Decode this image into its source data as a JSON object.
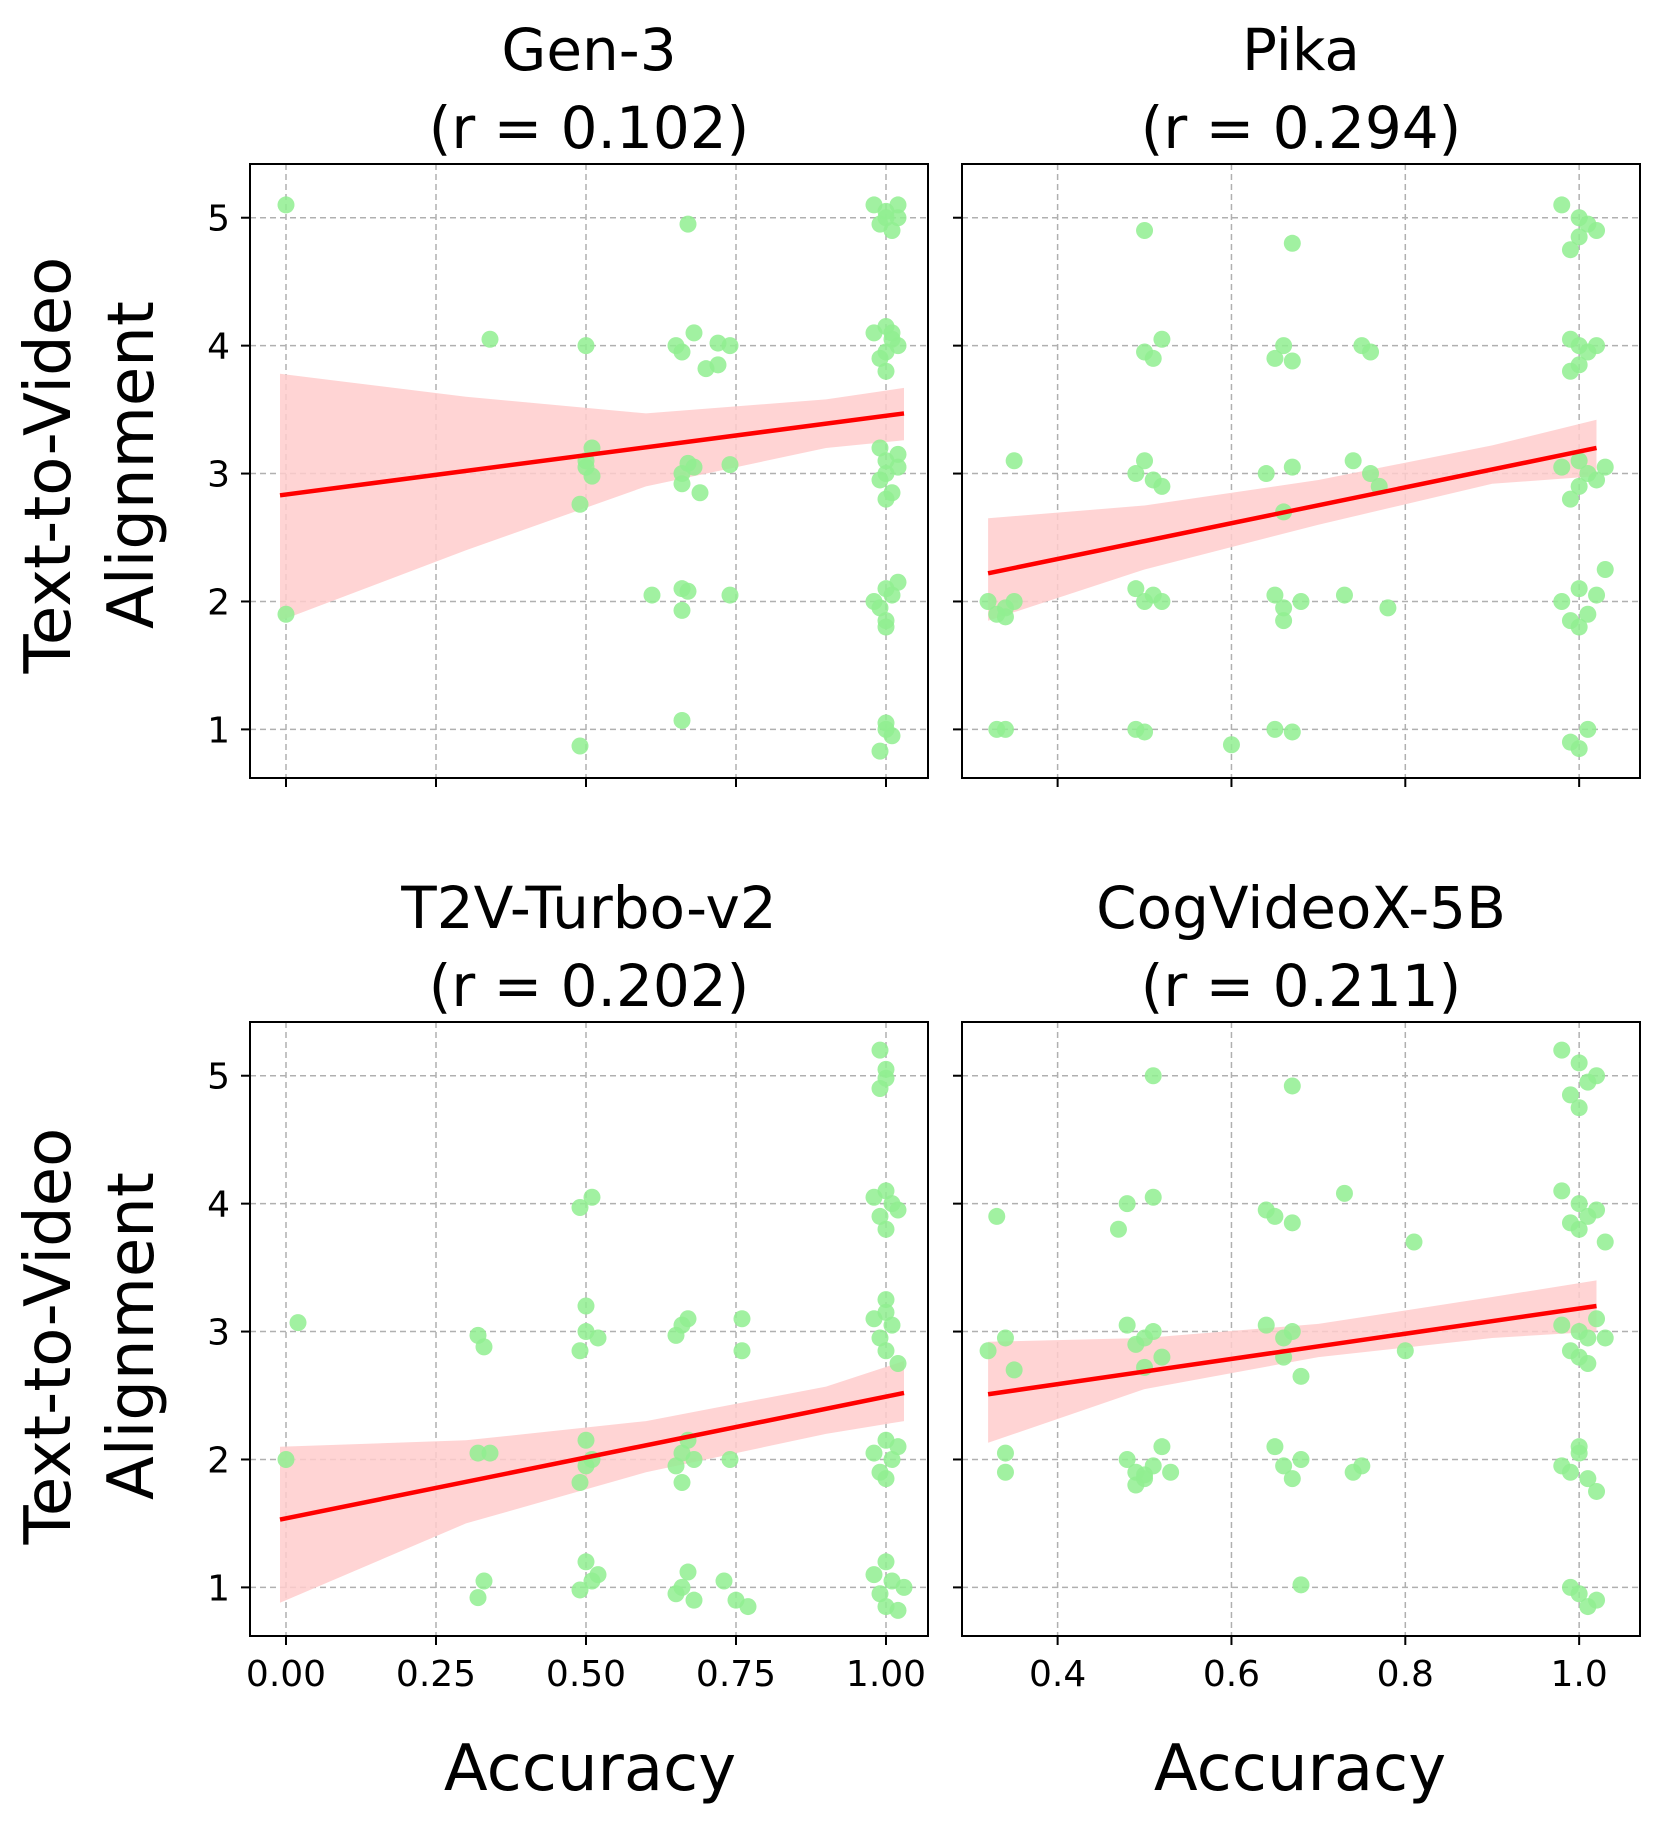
{
  "figure": {
    "ylabel_line1": "Text-to-Video",
    "ylabel_line2": "Alignment",
    "xlabel": "Accuracy"
  },
  "colors": {
    "point": "#90ee90",
    "line": "#ff0000",
    "band": "#ffcccc",
    "grid": "#b0b0b0"
  },
  "chart_data": [
    {
      "type": "scatter",
      "title": "Gen-3",
      "subtitle": "(r = 0.102)",
      "xlabel": "",
      "ylabel": "Text-to-Video Alignment",
      "xlim": [
        -0.06,
        1.07
      ],
      "ylim": [
        0.62,
        5.42
      ],
      "xticks": [
        0,
        0.25,
        0.5,
        0.75,
        1.0
      ],
      "xtick_labels": [],
      "yticks": [
        1,
        2,
        3,
        4,
        5
      ],
      "ytick_labels": [
        "1",
        "2",
        "3",
        "4",
        "5"
      ],
      "grid": true,
      "points": [
        [
          0.0,
          5.1
        ],
        [
          0.0,
          1.9
        ],
        [
          0.34,
          4.05
        ],
        [
          0.49,
          0.87
        ],
        [
          0.5,
          3.1
        ],
        [
          0.51,
          3.2
        ],
        [
          0.51,
          2.98
        ],
        [
          0.5,
          3.05
        ],
        [
          0.49,
          2.76
        ],
        [
          0.5,
          4.0
        ],
        [
          0.65,
          4.0
        ],
        [
          0.66,
          3.95
        ],
        [
          0.68,
          4.1
        ],
        [
          0.7,
          3.82
        ],
        [
          0.72,
          4.02
        ],
        [
          0.74,
          4.0
        ],
        [
          0.72,
          3.85
        ],
        [
          0.67,
          4.95
        ],
        [
          0.66,
          3.0
        ],
        [
          0.66,
          2.92
        ],
        [
          0.67,
          3.08
        ],
        [
          0.68,
          3.05
        ],
        [
          0.69,
          2.85
        ],
        [
          0.74,
          3.07
        ],
        [
          0.61,
          2.05
        ],
        [
          0.66,
          2.1
        ],
        [
          0.67,
          2.08
        ],
        [
          0.66,
          1.93
        ],
        [
          0.74,
          2.05
        ],
        [
          0.66,
          1.07
        ],
        [
          0.98,
          5.1
        ],
        [
          1.0,
          5.05
        ],
        [
          1.02,
          5.0
        ],
        [
          0.99,
          4.95
        ],
        [
          1.0,
          5.0
        ],
        [
          1.01,
          4.9
        ],
        [
          1.02,
          5.1
        ],
        [
          0.98,
          4.1
        ],
        [
          1.0,
          4.15
        ],
        [
          1.01,
          4.05
        ],
        [
          1.0,
          3.95
        ],
        [
          0.99,
          3.9
        ],
        [
          1.02,
          4.0
        ],
        [
          1.0,
          3.8
        ],
        [
          1.01,
          4.1
        ],
        [
          0.99,
          3.2
        ],
        [
          1.0,
          3.1
        ],
        [
          1.02,
          3.05
        ],
        [
          1.0,
          3.0
        ],
        [
          0.99,
          2.95
        ],
        [
          1.01,
          2.85
        ],
        [
          1.0,
          2.8
        ],
        [
          1.02,
          3.15
        ],
        [
          0.98,
          2.0
        ],
        [
          1.0,
          2.1
        ],
        [
          1.01,
          2.05
        ],
        [
          0.99,
          1.95
        ],
        [
          1.0,
          1.85
        ],
        [
          1.02,
          2.15
        ],
        [
          1.0,
          1.8
        ],
        [
          1.0,
          1.05
        ],
        [
          1.01,
          0.95
        ],
        [
          0.99,
          0.83
        ],
        [
          1.0,
          1.0
        ]
      ],
      "fit": {
        "x": [
          -0.01,
          1.03
        ],
        "y": [
          2.83,
          3.47
        ]
      },
      "ci_upper": [
        [
          -0.01,
          3.78
        ],
        [
          0.3,
          3.6
        ],
        [
          0.6,
          3.47
        ],
        [
          0.9,
          3.58
        ],
        [
          1.03,
          3.67
        ]
      ],
      "ci_lower": [
        [
          1.03,
          3.26
        ],
        [
          0.9,
          3.2
        ],
        [
          0.6,
          2.9
        ],
        [
          0.3,
          2.4
        ],
        [
          -0.01,
          1.85
        ]
      ]
    },
    {
      "type": "scatter",
      "title": "Pika",
      "subtitle": "(r = 0.294)",
      "xlabel": "",
      "ylabel": "",
      "xlim": [
        0.29,
        1.07
      ],
      "ylim": [
        0.62,
        5.42
      ],
      "xticks": [
        0.4,
        0.6,
        0.8,
        1.0
      ],
      "xtick_labels": [],
      "yticks": [
        1,
        2,
        3,
        4,
        5
      ],
      "ytick_labels": [],
      "grid": true,
      "points": [
        [
          0.32,
          2.0
        ],
        [
          0.33,
          1.9
        ],
        [
          0.34,
          1.95
        ],
        [
          0.35,
          2.0
        ],
        [
          0.34,
          1.88
        ],
        [
          0.33,
          1.0
        ],
        [
          0.34,
          1.0
        ],
        [
          0.35,
          3.1
        ],
        [
          0.5,
          4.9
        ],
        [
          0.5,
          3.95
        ],
        [
          0.51,
          3.9
        ],
        [
          0.52,
          4.05
        ],
        [
          0.49,
          3.0
        ],
        [
          0.5,
          3.1
        ],
        [
          0.51,
          2.95
        ],
        [
          0.52,
          2.9
        ],
        [
          0.49,
          2.1
        ],
        [
          0.5,
          2.0
        ],
        [
          0.52,
          2.0
        ],
        [
          0.51,
          2.05
        ],
        [
          0.49,
          1.0
        ],
        [
          0.5,
          0.98
        ],
        [
          0.6,
          0.88
        ],
        [
          0.67,
          4.8
        ],
        [
          0.65,
          3.9
        ],
        [
          0.66,
          4.0
        ],
        [
          0.67,
          3.88
        ],
        [
          0.64,
          3.0
        ],
        [
          0.66,
          2.7
        ],
        [
          0.67,
          3.05
        ],
        [
          0.65,
          2.05
        ],
        [
          0.66,
          1.95
        ],
        [
          0.66,
          1.85
        ],
        [
          0.68,
          2.0
        ],
        [
          0.65,
          1.0
        ],
        [
          0.67,
          0.98
        ],
        [
          0.75,
          4.0
        ],
        [
          0.76,
          3.95
        ],
        [
          0.74,
          3.1
        ],
        [
          0.76,
          3.0
        ],
        [
          0.77,
          2.9
        ],
        [
          0.73,
          2.05
        ],
        [
          0.78,
          1.95
        ],
        [
          0.98,
          5.1
        ],
        [
          1.0,
          5.0
        ],
        [
          1.01,
          4.95
        ],
        [
          0.99,
          4.75
        ],
        [
          1.0,
          4.85
        ],
        [
          1.02,
          4.9
        ],
        [
          0.99,
          4.05
        ],
        [
          1.0,
          4.0
        ],
        [
          1.01,
          3.95
        ],
        [
          1.0,
          3.85
        ],
        [
          0.99,
          3.8
        ],
        [
          1.02,
          4.0
        ],
        [
          0.98,
          3.05
        ],
        [
          1.0,
          3.1
        ],
        [
          1.01,
          3.0
        ],
        [
          1.0,
          2.9
        ],
        [
          0.99,
          2.8
        ],
        [
          1.02,
          2.95
        ],
        [
          1.03,
          3.05
        ],
        [
          0.98,
          2.0
        ],
        [
          1.0,
          2.1
        ],
        [
          1.01,
          1.9
        ],
        [
          0.99,
          1.85
        ],
        [
          1.0,
          1.8
        ],
        [
          1.02,
          2.05
        ],
        [
          1.03,
          2.25
        ],
        [
          0.99,
          0.9
        ],
        [
          1.0,
          0.85
        ],
        [
          1.01,
          1.0
        ]
      ],
      "fit": {
        "x": [
          0.32,
          1.02
        ],
        "y": [
          2.22,
          3.2
        ]
      },
      "ci_upper": [
        [
          0.32,
          2.65
        ],
        [
          0.5,
          2.75
        ],
        [
          0.7,
          2.95
        ],
        [
          0.9,
          3.22
        ],
        [
          1.02,
          3.42
        ]
      ],
      "ci_lower": [
        [
          1.02,
          2.98
        ],
        [
          0.9,
          2.92
        ],
        [
          0.7,
          2.6
        ],
        [
          0.5,
          2.25
        ],
        [
          0.32,
          1.85
        ]
      ]
    },
    {
      "type": "scatter",
      "title": "T2V-Turbo-v2",
      "subtitle": "(r = 0.202)",
      "xlabel": "Accuracy",
      "ylabel": "Text-to-Video Alignment",
      "xlim": [
        -0.06,
        1.07
      ],
      "ylim": [
        0.62,
        5.42
      ],
      "xticks": [
        0,
        0.25,
        0.5,
        0.75,
        1.0
      ],
      "xtick_labels": [
        "0.00",
        "0.25",
        "0.50",
        "0.75",
        "1.00"
      ],
      "yticks": [
        1,
        2,
        3,
        4,
        5
      ],
      "ytick_labels": [
        "1",
        "2",
        "3",
        "4",
        "5"
      ],
      "grid": true,
      "points": [
        [
          0.0,
          2.0
        ],
        [
          0.02,
          3.07
        ],
        [
          0.32,
          2.97
        ],
        [
          0.33,
          2.88
        ],
        [
          0.32,
          2.05
        ],
        [
          0.34,
          2.05
        ],
        [
          0.33,
          1.05
        ],
        [
          0.32,
          0.92
        ],
        [
          0.49,
          3.97
        ],
        [
          0.51,
          4.05
        ],
        [
          0.5,
          3.2
        ],
        [
          0.5,
          3.0
        ],
        [
          0.49,
          2.85
        ],
        [
          0.52,
          2.95
        ],
        [
          0.5,
          2.15
        ],
        [
          0.51,
          2.0
        ],
        [
          0.49,
          1.82
        ],
        [
          0.5,
          1.95
        ],
        [
          0.5,
          1.2
        ],
        [
          0.51,
          1.05
        ],
        [
          0.49,
          0.98
        ],
        [
          0.52,
          1.1
        ],
        [
          0.67,
          3.1
        ],
        [
          0.66,
          3.05
        ],
        [
          0.65,
          2.97
        ],
        [
          0.76,
          3.1
        ],
        [
          0.76,
          2.85
        ],
        [
          0.66,
          2.05
        ],
        [
          0.67,
          2.15
        ],
        [
          0.68,
          2.0
        ],
        [
          0.66,
          1.82
        ],
        [
          0.65,
          1.95
        ],
        [
          0.74,
          2.0
        ],
        [
          0.67,
          1.12
        ],
        [
          0.66,
          1.0
        ],
        [
          0.65,
          0.95
        ],
        [
          0.68,
          0.9
        ],
        [
          0.73,
          1.05
        ],
        [
          0.75,
          0.9
        ],
        [
          0.77,
          0.85
        ],
        [
          0.99,
          5.2
        ],
        [
          1.0,
          5.05
        ],
        [
          0.99,
          4.9
        ],
        [
          1.0,
          4.98
        ],
        [
          0.98,
          4.05
        ],
        [
          1.0,
          4.1
        ],
        [
          1.01,
          4.0
        ],
        [
          0.99,
          3.9
        ],
        [
          1.0,
          3.8
        ],
        [
          1.02,
          3.95
        ],
        [
          0.98,
          3.1
        ],
        [
          1.0,
          3.25
        ],
        [
          1.01,
          3.05
        ],
        [
          0.99,
          2.95
        ],
        [
          1.0,
          2.85
        ],
        [
          1.02,
          2.75
        ],
        [
          1.0,
          3.15
        ],
        [
          0.98,
          2.05
        ],
        [
          1.0,
          2.15
        ],
        [
          1.01,
          2.0
        ],
        [
          0.99,
          1.9
        ],
        [
          1.0,
          1.85
        ],
        [
          1.02,
          2.1
        ],
        [
          0.98,
          1.1
        ],
        [
          1.0,
          1.2
        ],
        [
          1.01,
          1.05
        ],
        [
          0.99,
          0.95
        ],
        [
          1.0,
          0.85
        ],
        [
          1.02,
          0.82
        ],
        [
          1.03,
          1.0
        ]
      ],
      "fit": {
        "x": [
          -0.01,
          1.03
        ],
        "y": [
          1.53,
          2.52
        ]
      },
      "ci_upper": [
        [
          -0.01,
          2.1
        ],
        [
          0.3,
          2.15
        ],
        [
          0.6,
          2.3
        ],
        [
          0.9,
          2.57
        ],
        [
          1.03,
          2.77
        ]
      ],
      "ci_lower": [
        [
          1.03,
          2.3
        ],
        [
          0.9,
          2.2
        ],
        [
          0.6,
          1.9
        ],
        [
          0.3,
          1.5
        ],
        [
          -0.01,
          0.88
        ]
      ]
    },
    {
      "type": "scatter",
      "title": "CogVideoX-5B",
      "subtitle": "(r = 0.211)",
      "xlabel": "Accuracy",
      "ylabel": "",
      "xlim": [
        0.29,
        1.07
      ],
      "ylim": [
        0.62,
        5.42
      ],
      "xticks": [
        0.4,
        0.6,
        0.8,
        1.0
      ],
      "xtick_labels": [
        "0.4",
        "0.6",
        "0.8",
        "1.0"
      ],
      "yticks": [
        1,
        2,
        3,
        4,
        5
      ],
      "ytick_labels": [],
      "grid": true,
      "points": [
        [
          0.32,
          2.85
        ],
        [
          0.33,
          3.9
        ],
        [
          0.34,
          2.95
        ],
        [
          0.35,
          2.7
        ],
        [
          0.34,
          2.05
        ],
        [
          0.34,
          1.9
        ],
        [
          0.51,
          5.0
        ],
        [
          0.47,
          3.8
        ],
        [
          0.48,
          4.0
        ],
        [
          0.51,
          4.05
        ],
        [
          0.48,
          3.05
        ],
        [
          0.5,
          2.95
        ],
        [
          0.51,
          3.0
        ],
        [
          0.49,
          2.9
        ],
        [
          0.5,
          2.72
        ],
        [
          0.52,
          2.8
        ],
        [
          0.48,
          2.0
        ],
        [
          0.49,
          1.9
        ],
        [
          0.5,
          1.85
        ],
        [
          0.51,
          1.95
        ],
        [
          0.52,
          2.1
        ],
        [
          0.49,
          1.8
        ],
        [
          0.5,
          1.88
        ],
        [
          0.53,
          1.9
        ],
        [
          0.67,
          4.92
        ],
        [
          0.64,
          3.95
        ],
        [
          0.65,
          3.9
        ],
        [
          0.67,
          3.85
        ],
        [
          0.73,
          4.08
        ],
        [
          0.64,
          3.05
        ],
        [
          0.66,
          2.95
        ],
        [
          0.67,
          3.0
        ],
        [
          0.68,
          2.65
        ],
        [
          0.66,
          2.8
        ],
        [
          0.8,
          2.85
        ],
        [
          0.81,
          3.7
        ],
        [
          0.65,
          2.1
        ],
        [
          0.66,
          1.95
        ],
        [
          0.67,
          1.85
        ],
        [
          0.68,
          2.0
        ],
        [
          0.75,
          1.95
        ],
        [
          0.74,
          1.9
        ],
        [
          0.68,
          1.02
        ],
        [
          0.98,
          5.2
        ],
        [
          1.0,
          5.1
        ],
        [
          1.01,
          4.95
        ],
        [
          0.99,
          4.85
        ],
        [
          1.0,
          4.75
        ],
        [
          1.02,
          5.0
        ],
        [
          0.98,
          4.1
        ],
        [
          1.0,
          4.0
        ],
        [
          1.01,
          3.9
        ],
        [
          0.99,
          3.85
        ],
        [
          1.0,
          3.8
        ],
        [
          1.02,
          3.95
        ],
        [
          1.03,
          3.7
        ],
        [
          0.98,
          3.05
        ],
        [
          1.0,
          3.0
        ],
        [
          1.01,
          2.95
        ],
        [
          0.99,
          2.85
        ],
        [
          1.0,
          2.8
        ],
        [
          1.02,
          3.1
        ],
        [
          1.03,
          2.95
        ],
        [
          1.01,
          2.75
        ],
        [
          0.98,
          1.95
        ],
        [
          1.0,
          2.1
        ],
        [
          1.01,
          1.85
        ],
        [
          0.99,
          1.9
        ],
        [
          1.0,
          2.05
        ],
        [
          1.02,
          1.75
        ],
        [
          0.99,
          1.0
        ],
        [
          1.0,
          0.95
        ],
        [
          1.01,
          0.85
        ],
        [
          1.02,
          0.9
        ]
      ],
      "fit": {
        "x": [
          0.32,
          1.02
        ],
        "y": [
          2.51,
          3.2
        ]
      },
      "ci_upper": [
        [
          0.32,
          2.92
        ],
        [
          0.5,
          2.95
        ],
        [
          0.7,
          3.06
        ],
        [
          0.9,
          3.27
        ],
        [
          1.02,
          3.4
        ]
      ],
      "ci_lower": [
        [
          1.02,
          3.0
        ],
        [
          0.9,
          2.95
        ],
        [
          0.7,
          2.8
        ],
        [
          0.5,
          2.55
        ],
        [
          0.32,
          2.13
        ]
      ]
    }
  ]
}
